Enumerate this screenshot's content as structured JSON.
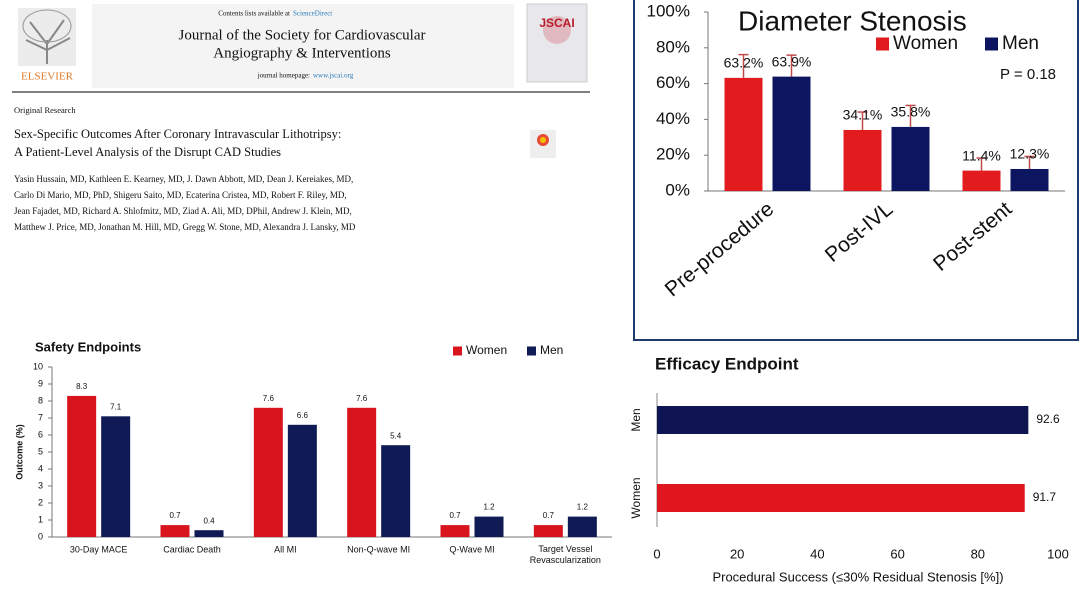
{
  "paper": {
    "contents_prefix": "Contents lists available at",
    "contents_link": "ScienceDirect",
    "journal_lines": [
      "Journal of the Society for Cardiovascular",
      "Angiography & Interventions"
    ],
    "homepage_prefix": "journal homepage:",
    "homepage_link": "www.jscai.org",
    "publisher": "ELSEVIER",
    "society": "JSCAI",
    "section": "Original Research",
    "title_lines": [
      "Sex-Specific Outcomes After Coronary Intravascular Lithotripsy:",
      "A Patient-Level Analysis of the Disrupt CAD Studies"
    ],
    "author_lines": [
      "Yasin Hussain, MD, Kathleen E. Kearney, MD, J. Dawn Abbott, MD, Dean J. Kereiakes, MD,",
      "Carlo Di Mario, MD, PhD, Shigeru Saito, MD, Ecaterina Cristea, MD, Robert F. Riley, MD,",
      "Jean Fajadet, MD, Richard A. Shlofmitz, MD, Ziad A. Ali, MD, DPhil, Andrew J. Klein, MD,",
      "Matthew J. Price, MD, Jonathan M. Hill, MD, Gregg W. Stone, MD, Alexandra J. Lansky, MD"
    ]
  },
  "chart_data": [
    {
      "type": "bar",
      "title": "Diameter Stenosis",
      "categories": [
        "Pre-procedure",
        "Post-IVL",
        "Post-stent"
      ],
      "series": [
        {
          "name": "Women",
          "color": "#e11b1e",
          "values": [
            63.2,
            34.1,
            11.4
          ],
          "value_labels": [
            "63.2%",
            "34.1%",
            "11.4%"
          ],
          "errors": [
            13,
            10,
            7
          ]
        },
        {
          "name": "Men",
          "color": "#0b1560",
          "values": [
            63.9,
            35.8,
            12.3
          ],
          "value_labels": [
            "63.9%",
            "35.8%",
            "12.3%"
          ],
          "errors": [
            12,
            12,
            7
          ]
        }
      ],
      "ylim": [
        0,
        100
      ],
      "yticks": [
        {
          "value": 0,
          "label": "0%"
        },
        {
          "value": 20,
          "label": "20%"
        },
        {
          "value": 40,
          "label": "40%"
        },
        {
          "value": 60,
          "label": "60%"
        },
        {
          "value": 80,
          "label": "80%"
        },
        {
          "value": 100,
          "label": "100%"
        }
      ],
      "annotation": "P = 0.18",
      "grid": false
    },
    {
      "type": "bar",
      "title": "Safety Endpoints",
      "ylabel": "Outcome (%)",
      "categories": [
        "30-Day MACE",
        "Cardiac Death",
        "All MI",
        "Non-Q-wave MI",
        "Q-Wave MI",
        "Target Vessel Revascularization"
      ],
      "series": [
        {
          "name": "Women",
          "color": "#d8141c",
          "values": [
            8.3,
            0.7,
            7.6,
            7.6,
            0.7,
            0.7
          ]
        },
        {
          "name": "Men",
          "color": "#101a55",
          "values": [
            7.1,
            0.4,
            6.6,
            5.4,
            1.2,
            1.2
          ]
        }
      ],
      "ylim": [
        0,
        10
      ],
      "yticks": [
        0,
        1,
        2,
        3,
        4,
        5,
        6,
        7,
        8,
        9,
        10
      ],
      "grid": false
    },
    {
      "type": "barh",
      "title": "Efficacy Endpoint",
      "xlabel": "Procedural Success (≤30% Residual Stenosis [%])",
      "categories": [
        "Men",
        "Women"
      ],
      "values": [
        92.6,
        91.7
      ],
      "colors": [
        "#0f1552",
        "#e0161e"
      ],
      "xlim": [
        0,
        100
      ],
      "xticks": [
        0,
        20,
        40,
        60,
        80,
        100
      ],
      "grid": false
    }
  ]
}
